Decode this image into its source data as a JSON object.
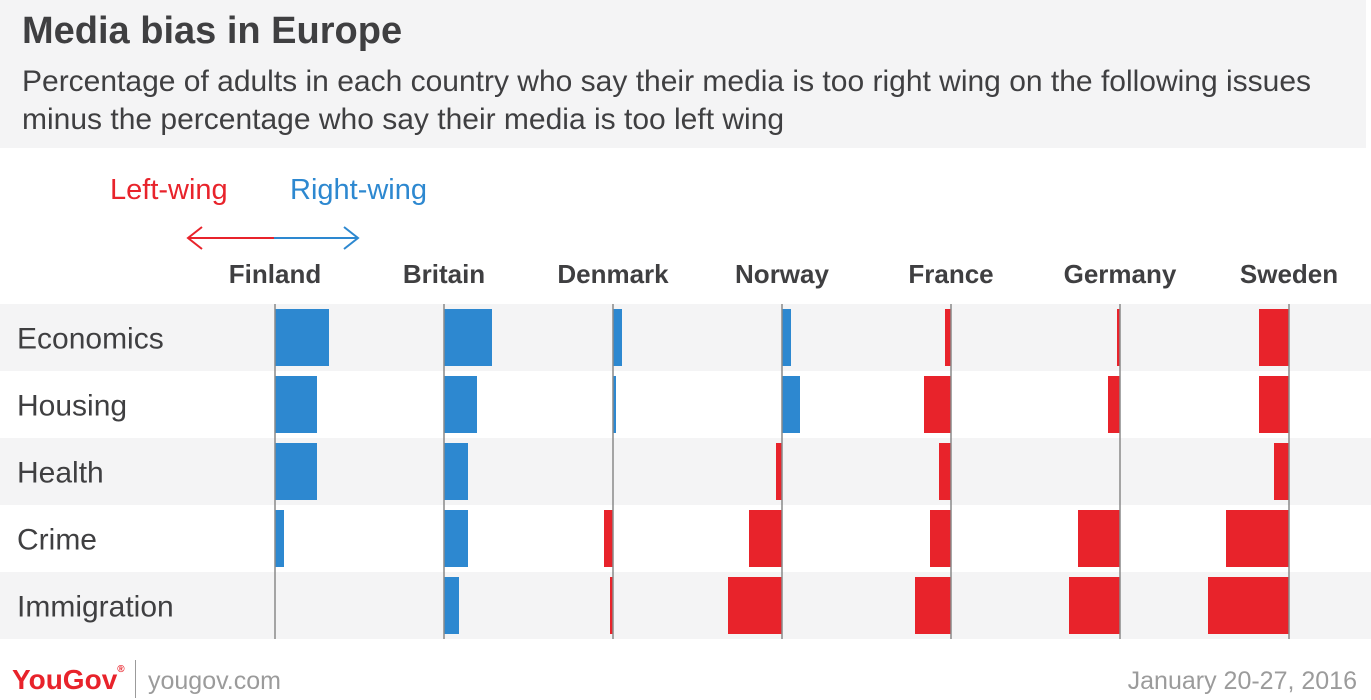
{
  "chart_data": {
    "type": "bar",
    "orientation": "horizontal-diverging",
    "title": "Media bias in Europe",
    "subtitle": "Percentage of adults in each country who say their media is too right wing on the following issues minus the percentage who say their media is too left wing",
    "legend": {
      "left_label": "Left-wing",
      "right_label": "Right-wing"
    },
    "countries": [
      "Finland",
      "Britain",
      "Denmark",
      "Norway",
      "France",
      "Germany",
      "Sweden"
    ],
    "issues": [
      "Economics",
      "Housing",
      "Health",
      "Crime",
      "Immigration"
    ],
    "values": {
      "Finland": [
        18,
        14,
        14,
        3,
        0
      ],
      "Britain": [
        16,
        11,
        8,
        8,
        5
      ],
      "Denmark": [
        3,
        1,
        0,
        -3,
        -1
      ],
      "Norway": [
        3,
        6,
        -2,
        -11,
        -18
      ],
      "France": [
        -2,
        -9,
        -4,
        -7,
        -12
      ],
      "Germany": [
        -1,
        -4,
        0,
        -14,
        -17
      ],
      "Sweden": [
        -10,
        -10,
        -5,
        -21,
        -27
      ]
    },
    "colors": {
      "positive": "#2d88d0",
      "negative": "#e8232b"
    }
  },
  "footer": {
    "brand": "YouGov",
    "trademark": "®",
    "site": "yougov.com",
    "date": "January 20-27, 2016"
  }
}
